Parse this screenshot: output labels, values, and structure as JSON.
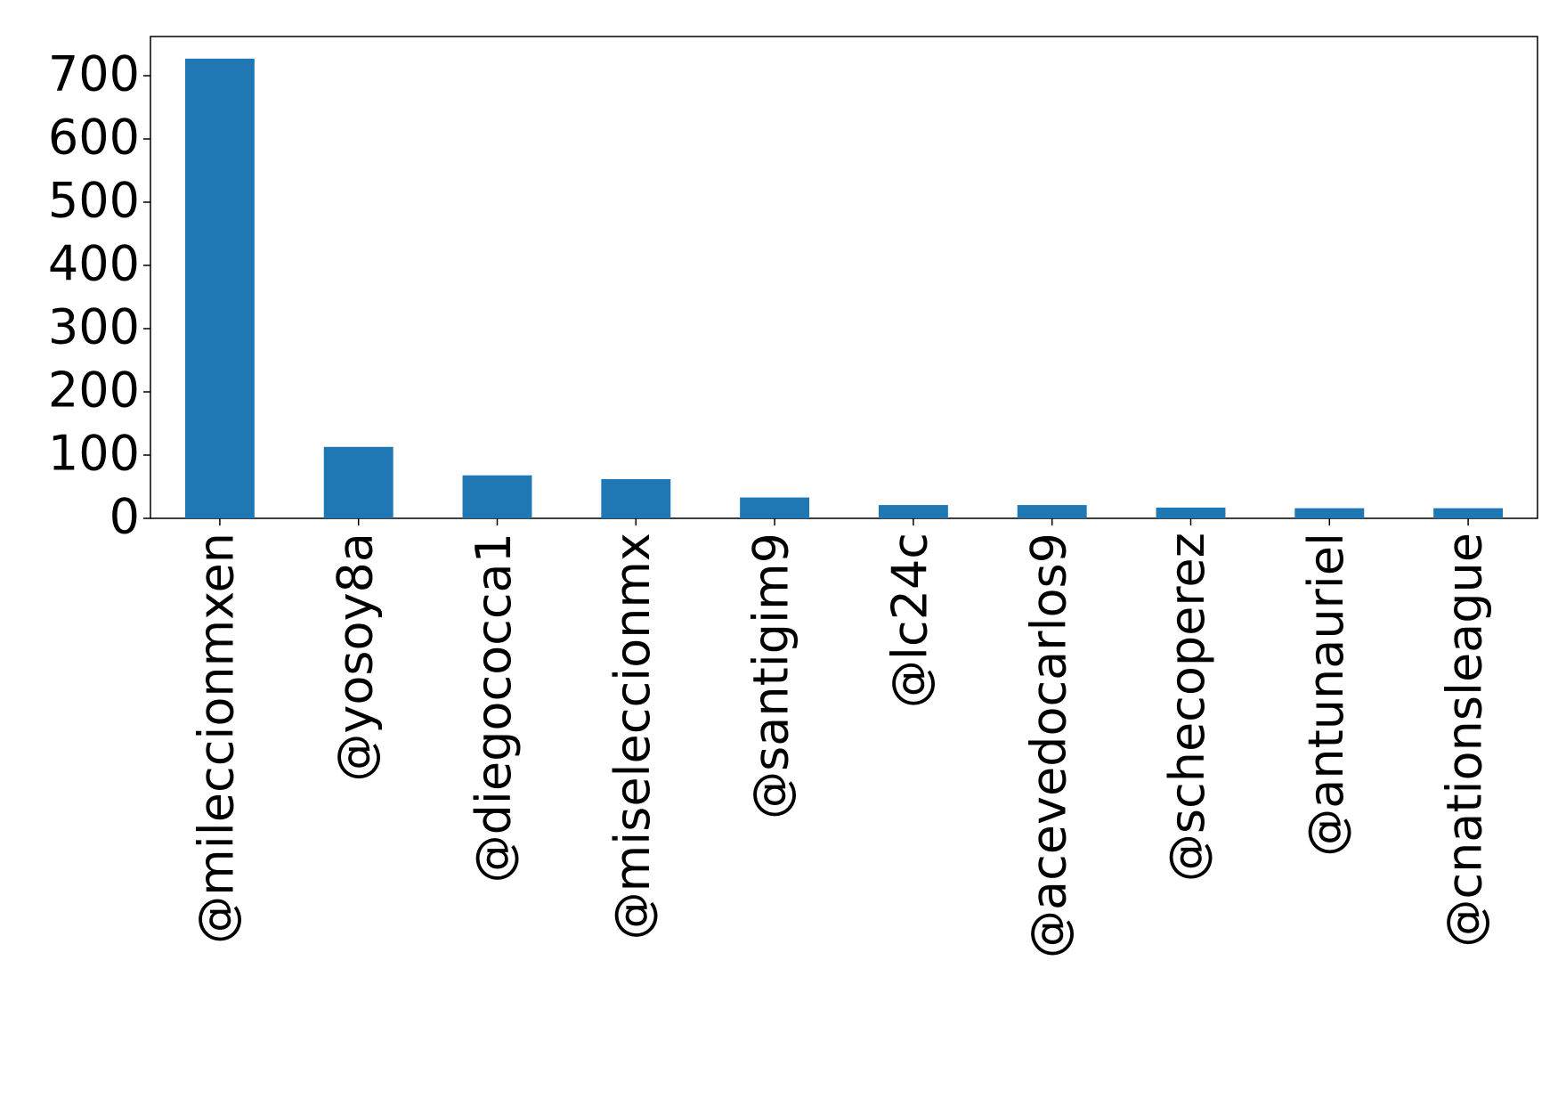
{
  "chart_data": {
    "type": "bar",
    "categories": [
      "@mileccionmxen",
      "@yosoy8a",
      "@diegococca1",
      "@miseleccionmx",
      "@santigim9",
      "@lc24c",
      "@acevedocarlos9",
      "@schecoperez",
      "@antunauriel",
      "@cnationsleague"
    ],
    "values": [
      727,
      113,
      68,
      62,
      33,
      21,
      21,
      17,
      16,
      16
    ],
    "color": "#1f77b4",
    "ylim": [
      0,
      762
    ],
    "yticks": [
      0,
      100,
      200,
      300,
      400,
      500,
      600,
      700
    ],
    "grid": false
  }
}
